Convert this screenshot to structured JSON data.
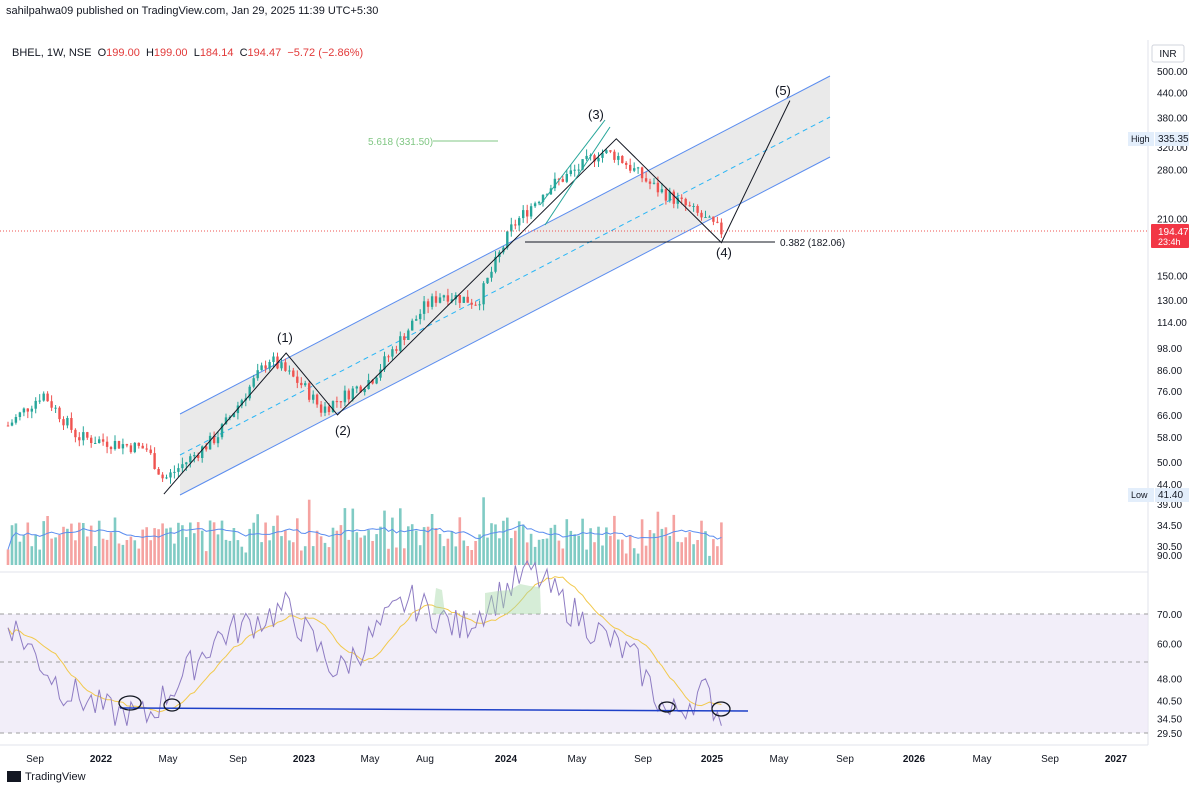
{
  "header": {
    "publisher_line": "sahilpahwa09 published on TradingView.com, Jan 29, 2025 11:39 UTC+5:30"
  },
  "legend": {
    "symbol": "BHEL, 1W, NSE",
    "o_label": "O",
    "o_value": "199.00",
    "h_label": "H",
    "h_value": "199.00",
    "l_label": "L",
    "l_value": "184.14",
    "c_label": "C",
    "c_value": "194.47",
    "change": "−5.72 (−2.86%)"
  },
  "price_axis": {
    "currency": "INR",
    "ticks": [
      "500.00",
      "440.00",
      "380.00",
      "320.00",
      "280.00",
      "210.00",
      "150.00",
      "130.00",
      "114.00",
      "98.00",
      "86.00",
      "76.00",
      "66.00",
      "58.00",
      "50.00",
      "44.00",
      "39.00",
      "34.50",
      "30.50"
    ],
    "high_label": "High",
    "high_value": "335.35",
    "low_label": "Low",
    "low_value": "41.40",
    "last_price": "194.47",
    "countdown": "23:4h"
  },
  "rsi_axis": {
    "ticks": [
      "90.00",
      "70.00",
      "60.00",
      "48.00",
      "40.50",
      "34.50",
      "29.50"
    ]
  },
  "time_axis": {
    "ticks": [
      "Sep",
      "2022",
      "May",
      "Sep",
      "2023",
      "May",
      "Aug",
      "2024",
      "May",
      "Sep",
      "2025",
      "May",
      "Sep",
      "2026",
      "May",
      "Sep",
      "2027"
    ]
  },
  "annotations": {
    "wave1": "(1)",
    "wave2": "(2)",
    "wave3": "(3)",
    "wave4": "(4)",
    "wave5": "(5)",
    "fib_ext": "5.618 (331.50)",
    "fib_ret": "0.382 (182.06)"
  },
  "colors": {
    "up": "#26a69a",
    "down": "#ef5350",
    "channel": "#5b8def",
    "rsi": "#8e7cc3",
    "rsi_ma": "#f2c94c",
    "label": "#f23645"
  },
  "brand": {
    "name": "TradingView"
  },
  "chart_data": {
    "type": "candlestick",
    "symbol": "BHEL",
    "interval": "1W",
    "exchange": "NSE",
    "currency": "INR",
    "scale": "log",
    "price_range": [
      29.5,
      540
    ],
    "x_range": [
      "2021-08",
      "2027-02"
    ],
    "last_bar": {
      "open": 199.0,
      "high": 199.0,
      "low": 184.14,
      "close": 194.47
    },
    "all_time_high": 335.35,
    "all_time_low": 41.4,
    "approx_path": [
      {
        "x": "2021-08",
        "y": 62
      },
      {
        "x": "2021-10",
        "y": 75
      },
      {
        "x": "2021-12",
        "y": 58
      },
      {
        "x": "2022-02",
        "y": 56
      },
      {
        "x": "2022-04",
        "y": 54
      },
      {
        "x": "2022-05",
        "y": 45
      },
      {
        "x": "2022-08",
        "y": 58
      },
      {
        "x": "2022-11",
        "y": 92
      },
      {
        "x": "2023-01",
        "y": 78
      },
      {
        "x": "2023-02",
        "y": 68
      },
      {
        "x": "2023-05",
        "y": 82
      },
      {
        "x": "2023-08",
        "y": 125
      },
      {
        "x": "2023-09",
        "y": 135
      },
      {
        "x": "2023-11",
        "y": 128
      },
      {
        "x": "2024-01",
        "y": 200
      },
      {
        "x": "2024-03",
        "y": 250
      },
      {
        "x": "2024-05",
        "y": 285
      },
      {
        "x": "2024-06",
        "y": 310
      },
      {
        "x": "2024-07",
        "y": 305
      },
      {
        "x": "2024-09",
        "y": 255
      },
      {
        "x": "2024-11",
        "y": 225
      },
      {
        "x": "2025-01",
        "y": 194.47
      }
    ],
    "waves": [
      {
        "label": "start",
        "x": "2022-05",
        "y": 41.4
      },
      {
        "label": "(1)",
        "x": "2022-12",
        "y": 95
      },
      {
        "label": "(2)",
        "x": "2023-03",
        "y": 66
      },
      {
        "label": "(3)",
        "x": "2024-07",
        "y": 335.35
      },
      {
        "label": "(4)",
        "x": "2025-01",
        "y": 182.06
      },
      {
        "label": "(5)",
        "x": "2025-05",
        "y": 420
      }
    ],
    "fibonacci": [
      {
        "label": "5.618 (331.50)",
        "value": 331.5
      },
      {
        "label": "0.382 (182.06)",
        "value": 182.06
      }
    ],
    "rsi": {
      "range": [
        29.5,
        90
      ],
      "levels": [
        70,
        48,
        29.5
      ],
      "support_value": 35,
      "approx_path": [
        {
          "x": "2021-08",
          "y": 68
        },
        {
          "x": "2021-11",
          "y": 45
        },
        {
          "x": "2022-02",
          "y": 36
        },
        {
          "x": "2022-04",
          "y": 35
        },
        {
          "x": "2022-08",
          "y": 62
        },
        {
          "x": "2022-12",
          "y": 72
        },
        {
          "x": "2023-03",
          "y": 50
        },
        {
          "x": "2023-07",
          "y": 75
        },
        {
          "x": "2023-10",
          "y": 65
        },
        {
          "x": "2024-02",
          "y": 85
        },
        {
          "x": "2024-05",
          "y": 68
        },
        {
          "x": "2024-08",
          "y": 55
        },
        {
          "x": "2024-10",
          "y": 35
        },
        {
          "x": "2024-12",
          "y": 44
        },
        {
          "x": "2025-01",
          "y": 35
        }
      ]
    }
  }
}
